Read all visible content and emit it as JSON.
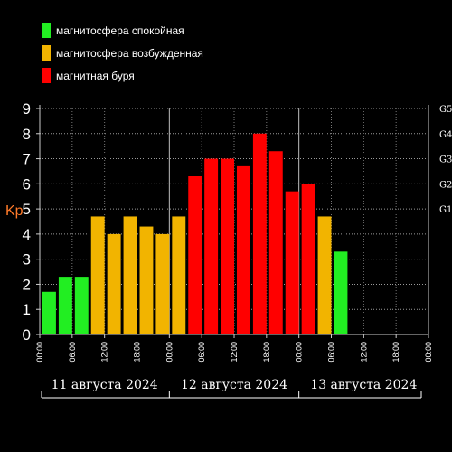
{
  "legend": [
    {
      "label": "магнитосфера спокойная",
      "color": "#22ee22"
    },
    {
      "label": "магнитосфера возбужденная",
      "color": "#f2b400"
    },
    {
      "label": "магнитная буря",
      "color": "#ff0000"
    }
  ],
  "chart_data": {
    "type": "bar",
    "ylabel": "Kp",
    "ylim": [
      0,
      9
    ],
    "yticks": [
      "0",
      "1",
      "2",
      "3",
      "4",
      "5",
      "6",
      "7",
      "8",
      "9"
    ],
    "right_axis_ticks": [
      {
        "value": 5,
        "label": "G1"
      },
      {
        "value": 6,
        "label": "G2"
      },
      {
        "value": 7,
        "label": "G3"
      },
      {
        "value": 8,
        "label": "G4"
      },
      {
        "value": 9,
        "label": "G5"
      }
    ],
    "time_ticks": [
      "00:00",
      "06:00",
      "12:00",
      "18:00",
      "00:00",
      "06:00",
      "12:00",
      "18:00",
      "00:00",
      "06:00",
      "12:00",
      "18:00",
      "00:00"
    ],
    "days": [
      "11 августа 2024",
      "12 августа 2024",
      "13 августа 2024"
    ],
    "interval_hours": 3,
    "grid": true,
    "values": [
      1.7,
      2.3,
      2.3,
      4.7,
      4.0,
      4.7,
      4.3,
      4.0,
      4.7,
      6.3,
      7.0,
      7.0,
      6.7,
      8.0,
      7.3,
      5.7,
      6.0,
      4.7,
      3.3
    ],
    "levels": [
      "quiet",
      "quiet",
      "quiet",
      "active",
      "active",
      "active",
      "active",
      "active",
      "active",
      "storm",
      "storm",
      "storm",
      "storm",
      "storm",
      "storm",
      "storm",
      "storm",
      "active",
      "quiet"
    ],
    "level_colors": {
      "quiet": "#22ee22",
      "active": "#f2b400",
      "storm": "#ff0000"
    }
  }
}
